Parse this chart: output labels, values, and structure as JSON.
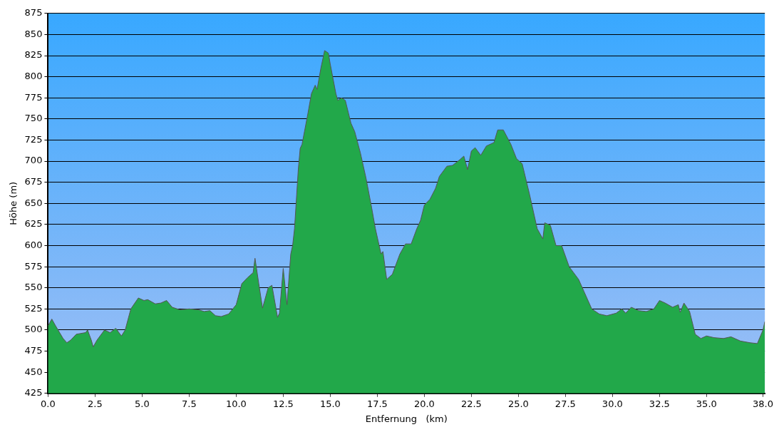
{
  "chart_data": {
    "type": "area",
    "xlabel": "Entfernung   (km)",
    "ylabel": "Höhe (m)",
    "xlim": [
      0,
      38.1
    ],
    "ylim": [
      425,
      875
    ],
    "xticks": [
      {
        "value": 0,
        "label": "0.0"
      },
      2.5,
      {
        "value": 5,
        "label": "5.0"
      },
      7.5,
      {
        "value": 10,
        "label": "10.0"
      },
      12.5,
      {
        "value": 15,
        "label": "15.0"
      },
      17.5,
      {
        "value": 20,
        "label": "20.0"
      },
      22.5,
      {
        "value": 25,
        "label": "25.0"
      },
      27.5,
      {
        "value": 30,
        "label": "30.0"
      },
      32.5,
      {
        "value": 35,
        "label": "35.0"
      },
      {
        "value": 38,
        "label": "38.0"
      }
    ],
    "yticks": [
      425,
      450,
      475,
      500,
      525,
      550,
      575,
      600,
      625,
      650,
      675,
      700,
      725,
      750,
      775,
      800,
      825,
      850,
      875
    ],
    "grid": "y",
    "legend": false,
    "series": [
      {
        "color": "#22a84a",
        "x": [
          0,
          0.2,
          0.4,
          0.8,
          1,
          1.2,
          1.5,
          2,
          2.1,
          2.3,
          2.4,
          2.6,
          3,
          3.3,
          3.6,
          3.9,
          4.1,
          4.4,
          4.8,
          5.1,
          5.3,
          5.7,
          6,
          6.3,
          6.6,
          7,
          7.5,
          8,
          8.3,
          8.6,
          8.9,
          9.2,
          9.6,
          10,
          10.3,
          10.6,
          10.9,
          11,
          11.2,
          11.4,
          11.7,
          11.9,
          12.2,
          12.3,
          12.5,
          12.7,
          12.9,
          13,
          13.1,
          13.3,
          13.4,
          13.5,
          13.8,
          14,
          14.2,
          14.3,
          14.5,
          14.7,
          14.9,
          15,
          15.3,
          15.4,
          15.6,
          15.8,
          16.1,
          16.3,
          16.6,
          16.9,
          17.2,
          17.4,
          17.7,
          17.8,
          18,
          18.3,
          18.7,
          19,
          19.3,
          19.6,
          19.8,
          20,
          20.3,
          20.6,
          20.8,
          21.2,
          21.5,
          21.9,
          22.1,
          22.3,
          22.5,
          22.7,
          23,
          23.3,
          23.7,
          23.9,
          24.2,
          24.6,
          24.9,
          25.2,
          25.6,
          26,
          26.3,
          26.4,
          26.7,
          27,
          27.3,
          27.7,
          28.2,
          28.5,
          28.9,
          29.3,
          29.7,
          30.2,
          30.5,
          30.7,
          31,
          31.4,
          31.8,
          32.2,
          32.5,
          32.8,
          33.2,
          33.5,
          33.6,
          33.8,
          34.1,
          34.4,
          34.7,
          35,
          35.4,
          35.9,
          36.3,
          36.8,
          37.3,
          37.7,
          38,
          38.1
        ],
        "values": [
          505,
          513,
          505,
          490,
          485,
          488,
          495,
          497,
          500,
          488,
          480,
          488,
          500,
          497,
          502,
          493,
          500,
          525,
          538,
          535,
          536,
          531,
          532,
          535,
          527,
          524,
          525,
          524,
          522,
          523,
          517,
          516,
          519,
          530,
          555,
          562,
          568,
          585,
          555,
          526,
          550,
          553,
          515,
          520,
          573,
          530,
          590,
          600,
          620,
          690,
          715,
          720,
          755,
          780,
          790,
          785,
          810,
          831,
          828,
          815,
          780,
          772,
          775,
          772,
          745,
          735,
          710,
          680,
          645,
          620,
          590,
          593,
          560,
          566,
          590,
          602,
          602,
          620,
          630,
          648,
          655,
          668,
          682,
          694,
          695,
          702,
          706,
          690,
          712,
          716,
          707,
          718,
          722,
          737,
          737,
          720,
          703,
          697,
          660,
          620,
          608,
          627,
          624,
          600,
          600,
          575,
          560,
          545,
          525,
          519,
          517,
          520,
          525,
          520,
          527,
          523,
          522,
          525,
          535,
          532,
          527,
          530,
          521,
          532,
          522,
          495,
          490,
          493,
          491,
          490,
          492,
          487,
          485,
          484,
          500,
          510
        ]
      }
    ]
  }
}
